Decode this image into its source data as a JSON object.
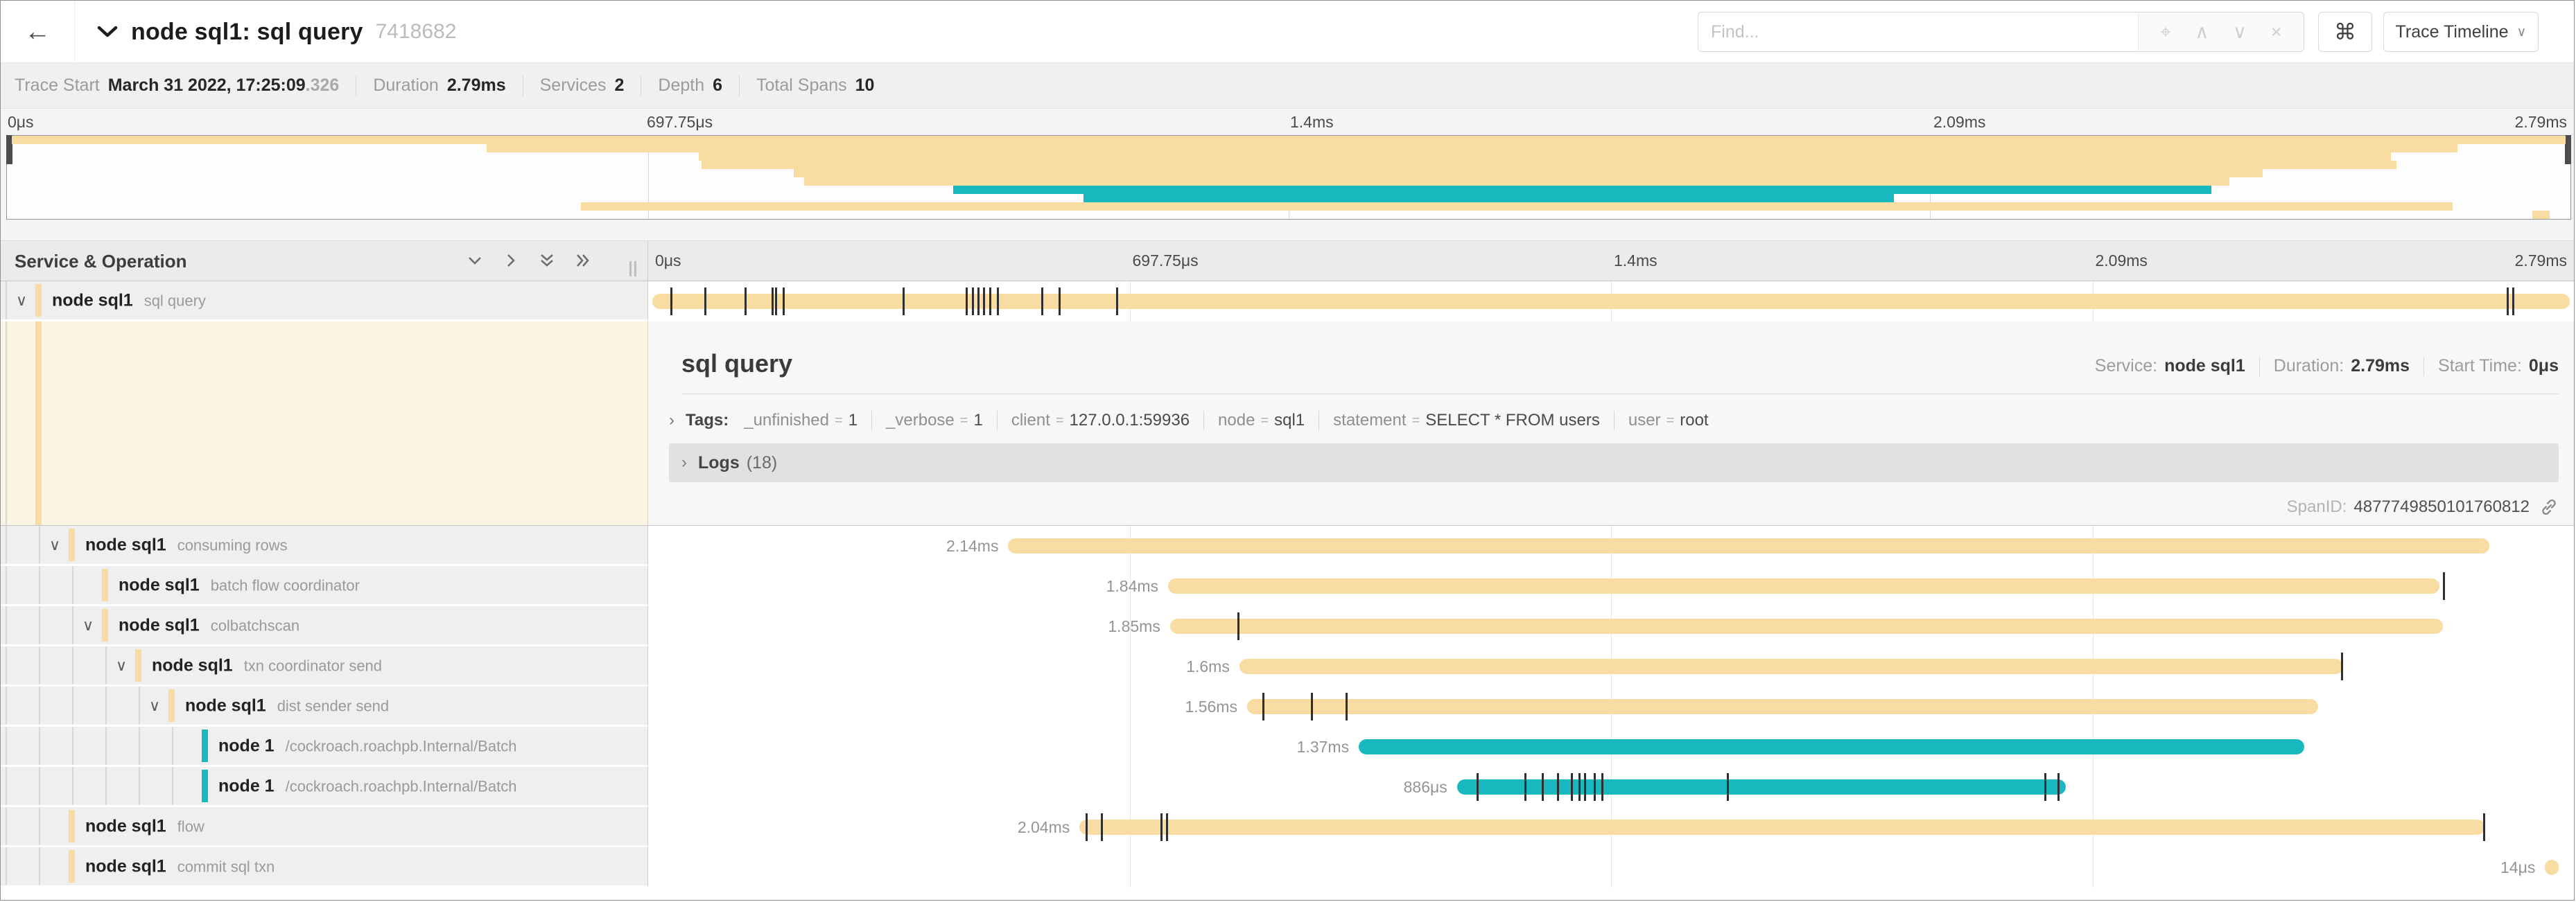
{
  "topbar": {
    "back_icon": "←",
    "title": "node sql1: sql query",
    "trace_id": "7418682",
    "find_placeholder": "Find...",
    "find_tools": [
      "⌖",
      "∧",
      "∨",
      "×"
    ],
    "shortcut_icon": "⌘",
    "view_button": "Trace Timeline",
    "view_caret": "∨"
  },
  "trace_info": {
    "items": [
      {
        "label": "Trace Start",
        "value": "March 31 2022, 17:25:09",
        "suffix": ".326"
      },
      {
        "label": "Duration",
        "value": "2.79ms"
      },
      {
        "label": "Services",
        "value": "2"
      },
      {
        "label": "Depth",
        "value": "6"
      },
      {
        "label": "Total Spans",
        "value": "10"
      }
    ]
  },
  "ruler_ticks": [
    "0μs",
    "697.75μs",
    "1.4ms",
    "2.09ms",
    "2.79ms"
  ],
  "grid_header": {
    "title": "Service & Operation"
  },
  "colors": {
    "tan": "#F8DCA1",
    "teal": "#17B8BE",
    "cream": "#FCF5E4",
    "tick": "#2f2f2f"
  },
  "spans": [
    {
      "service": "node sql1",
      "operation": "sql query",
      "level": 0,
      "chevron": true,
      "color": "tan",
      "start": 0.002,
      "end": 0.998,
      "label": "",
      "selected": true,
      "ticks": [
        0.0115,
        0.029,
        0.05,
        0.064,
        0.066,
        0.07,
        0.132,
        0.165,
        0.168,
        0.171,
        0.174,
        0.177,
        0.181,
        0.204,
        0.213,
        0.243,
        0.965,
        0.968
      ]
    },
    {
      "service": "node sql1",
      "operation": "consuming rows",
      "level": 1,
      "chevron": true,
      "color": "tan",
      "start": 0.187,
      "end": 0.956,
      "label": "2.14ms",
      "ticks": []
    },
    {
      "service": "node sql1",
      "operation": "batch flow coordinator",
      "level": 2,
      "chevron": false,
      "color": "tan",
      "start": 0.27,
      "end": 0.93,
      "label": "1.84ms",
      "ticks": [
        0.932
      ]
    },
    {
      "service": "node sql1",
      "operation": "colbatchscan",
      "level": 2,
      "chevron": true,
      "color": "tan",
      "start": 0.271,
      "end": 0.932,
      "label": "1.85ms",
      "ticks": [
        0.306
      ]
    },
    {
      "service": "node sql1",
      "operation": "txn coordinator send",
      "level": 3,
      "chevron": true,
      "color": "tan",
      "start": 0.307,
      "end": 0.88,
      "label": "1.6ms",
      "ticks": [
        0.879
      ]
    },
    {
      "service": "node sql1",
      "operation": "dist sender send",
      "level": 4,
      "chevron": true,
      "color": "tan",
      "start": 0.311,
      "end": 0.867,
      "label": "1.56ms",
      "ticks": [
        0.319,
        0.344,
        0.362
      ]
    },
    {
      "service": "node 1",
      "operation": "/cockroach.roachpb.Internal/Batch",
      "level": 5,
      "chevron": false,
      "color": "teal",
      "start": 0.369,
      "end": 0.86,
      "label": "1.37ms",
      "ticks": []
    },
    {
      "service": "node 1",
      "operation": "/cockroach.roachpb.Internal/Batch",
      "level": 5,
      "chevron": false,
      "color": "teal",
      "start": 0.42,
      "end": 0.736,
      "label": "886μs",
      "ticks": [
        0.43,
        0.455,
        0.464,
        0.472,
        0.479,
        0.483,
        0.486,
        0.491,
        0.495,
        0.56,
        0.725,
        0.732
      ]
    },
    {
      "service": "node sql1",
      "operation": "flow",
      "level": 1,
      "chevron": false,
      "color": "tan",
      "start": 0.224,
      "end": 0.954,
      "label": "2.04ms",
      "ticks": [
        0.227,
        0.235,
        0.266,
        0.269,
        0.953
      ]
    },
    {
      "service": "node sql1",
      "operation": "commit sql txn",
      "level": 1,
      "chevron": false,
      "color": "tan",
      "start": 0.985,
      "end": 0.992,
      "label": "14μs",
      "ticks": []
    }
  ],
  "detail": {
    "title": "sql query",
    "meta": [
      {
        "label": "Service:",
        "value": "node sql1"
      },
      {
        "label": "Duration:",
        "value": "2.79ms"
      },
      {
        "label": "Start Time:",
        "value": "0μs"
      }
    ],
    "tags_chevron": "›",
    "tags_label": "Tags:",
    "tags": [
      {
        "key": "_unfinished",
        "value": "1"
      },
      {
        "key": "_verbose",
        "value": "1"
      },
      {
        "key": "client",
        "value": "127.0.0.1:59936"
      },
      {
        "key": "node",
        "value": "sql1"
      },
      {
        "key": "statement",
        "value": "SELECT * FROM users"
      },
      {
        "key": "user",
        "value": "root"
      }
    ],
    "logs_chevron": "›",
    "logs_label": "Logs",
    "logs_count": "(18)",
    "spanid_label": "SpanID:",
    "spanid_value": "4877749850101760812"
  }
}
